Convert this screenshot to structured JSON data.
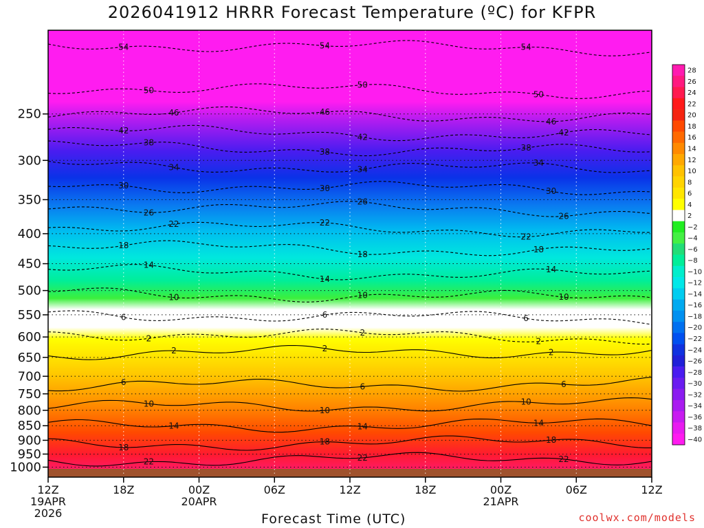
{
  "chart_data": {
    "type": "heatmap",
    "title": "2026041912 HRRR Forecast Temperature (ºC) for KFPR",
    "xlabel": "Forecast Time (UTC)",
    "credit": "coolwx.com/models",
    "y_ticks": [
      "250",
      "300",
      "350",
      "400",
      "450",
      "500",
      "550",
      "600",
      "650",
      "700",
      "750",
      "800",
      "850",
      "900",
      "950",
      "1000"
    ],
    "y_tick_values": [
      250,
      300,
      350,
      400,
      450,
      500,
      550,
      600,
      650,
      700,
      750,
      800,
      850,
      900,
      950,
      1000
    ],
    "x_ticks": [
      {
        "hour": 0,
        "l1": "12Z",
        "l2": "19APR",
        "l3": "2026"
      },
      {
        "hour": 6,
        "l1": "18Z",
        "l2": "",
        "l3": ""
      },
      {
        "hour": 12,
        "l1": "00Z",
        "l2": "20APR",
        "l3": ""
      },
      {
        "hour": 18,
        "l1": "06Z",
        "l2": "",
        "l3": ""
      },
      {
        "hour": 24,
        "l1": "12Z",
        "l2": "",
        "l3": ""
      },
      {
        "hour": 30,
        "l1": "18Z",
        "l2": "",
        "l3": ""
      },
      {
        "hour": 36,
        "l1": "00Z",
        "l2": "21APR",
        "l3": ""
      },
      {
        "hour": 42,
        "l1": "06Z",
        "l2": "",
        "l3": ""
      },
      {
        "hour": 48,
        "l1": "12Z",
        "l2": "",
        "l3": ""
      }
    ],
    "colorbar_labels": [
      "28",
      "26",
      "24",
      "22",
      "20",
      "18",
      "16",
      "14",
      "12",
      "10",
      "8",
      "6",
      "4",
      "2",
      "−2",
      "−4",
      "−6",
      "−8",
      "−10",
      "−12",
      "−14",
      "−16",
      "−18",
      "−20",
      "−22",
      "−24",
      "−26",
      "−28",
      "−30",
      "−32",
      "−34",
      "−36",
      "−38",
      "−40"
    ],
    "colorbar_colors": [
      "#ff1bb0",
      "#ff1a80",
      "#ff1a50",
      "#ff1a1a",
      "#f52410",
      "#ff4a00",
      "#ff6a00",
      "#ff8a00",
      "#ffa800",
      "#ffc200",
      "#ffd400",
      "#ffe600",
      "#ffff00",
      "#ffffff",
      "#22ee22",
      "#44f044",
      "#22dd77",
      "#00ee99",
      "#00eecc",
      "#00e8e8",
      "#00cdf0",
      "#00aaf0",
      "#0090f0",
      "#0070f0",
      "#0050f0",
      "#1032e0",
      "#2020d8",
      "#4a1cf0",
      "#6a1cf0",
      "#8a1cf0",
      "#aa1cf0",
      "#c81cf0",
      "#e81cf0",
      "#ff1cf0"
    ],
    "contour_lines": [
      {
        "label": "54",
        "p": 190
      },
      {
        "label": "50",
        "p": 225
      },
      {
        "label": "46",
        "p": 248
      },
      {
        "label": "42",
        "p": 267
      },
      {
        "label": "38",
        "p": 284
      },
      {
        "label": "34",
        "p": 305
      },
      {
        "label": "30",
        "p": 330
      },
      {
        "label": "26",
        "p": 358
      },
      {
        "label": "22",
        "p": 388
      },
      {
        "label": "18",
        "p": 420
      },
      {
        "label": "14",
        "p": 462
      },
      {
        "label": "10",
        "p": 505
      },
      {
        "label": "6",
        "p": 548
      },
      {
        "label": "2",
        "p": 590
      },
      {
        "label": "2",
        "p": 640
      },
      {
        "label": "6",
        "p": 728
      },
      {
        "label": "10",
        "p": 790
      },
      {
        "label": "14",
        "p": 853
      },
      {
        "label": "18",
        "p": 915
      },
      {
        "label": "22",
        "p": 975
      }
    ]
  }
}
